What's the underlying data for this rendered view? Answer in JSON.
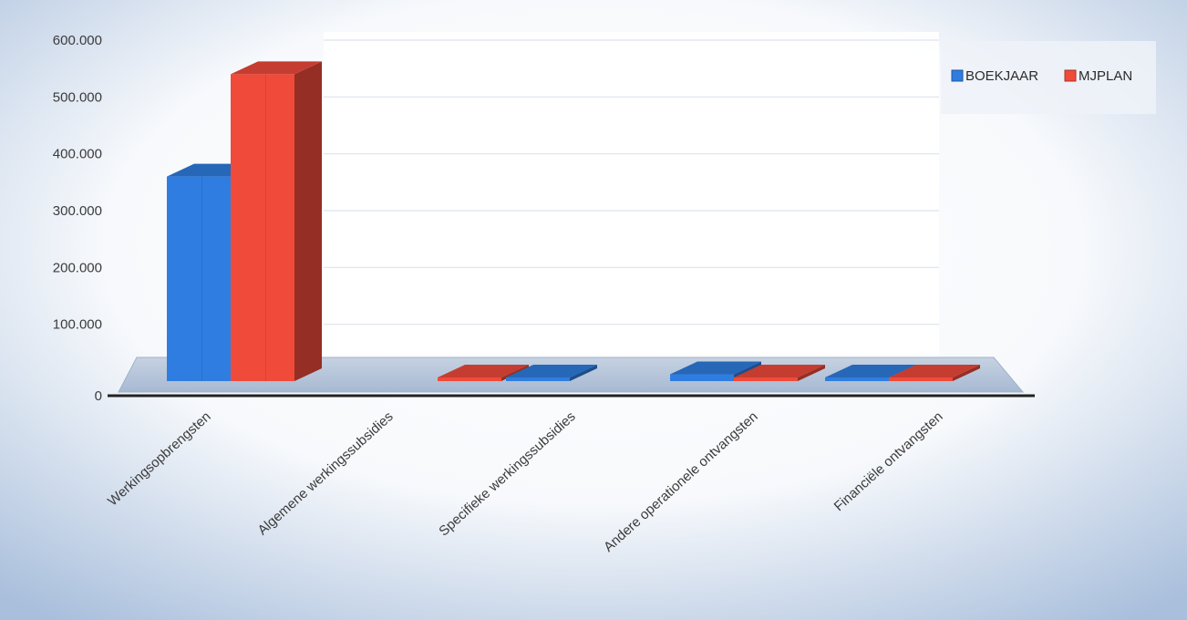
{
  "chart_data": {
    "type": "bar",
    "title": "",
    "xlabel": "",
    "ylabel": "",
    "categories": [
      "Werkingsopbrengsten",
      "Algemene werkingssubsidies",
      "Specifieke werkingssubsidies",
      "Andere operationele ontvangsten",
      "Financiële ontvangsten"
    ],
    "series": [
      {
        "name": "BOEKJAAR",
        "color": "#2f7de0",
        "values": [
          360000,
          0,
          1000,
          12000,
          1000
        ]
      },
      {
        "name": "MJPLAN",
        "color": "#f04a3a",
        "values": [
          540000,
          1000,
          0,
          1000,
          1000
        ]
      }
    ],
    "yticks": [
      "0",
      "100.000",
      "200.000",
      "300.000",
      "400.000",
      "500.000",
      "600.000"
    ],
    "ylim": [
      0,
      600000
    ],
    "grid": true,
    "legend": {
      "placement": "top-right",
      "items": [
        "BOEKJAAR",
        "MJPLAN"
      ]
    },
    "three_d": true
  }
}
